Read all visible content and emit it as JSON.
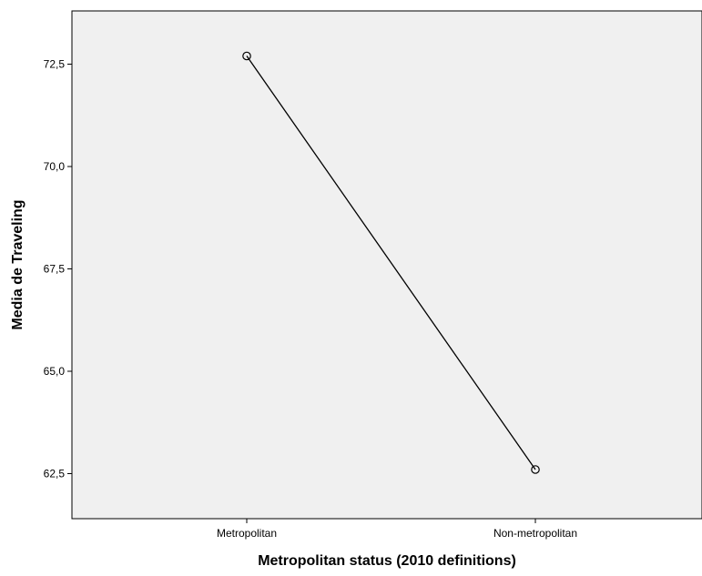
{
  "chart_data": {
    "type": "line",
    "categories": [
      "Metropolitan",
      "Non-metropolitan"
    ],
    "series": [
      {
        "values": [
          72.7,
          62.6
        ],
        "color": "#000000"
      }
    ],
    "xlabel": "Metropolitan status (2010 definitions)",
    "ylabel": "Media de Traveling",
    "yticks": [
      "62,5",
      "65,0",
      "67,5",
      "70,0",
      "72,5"
    ],
    "ylim": [
      61.4,
      73.8
    ],
    "grid": false,
    "markers": "open-circle",
    "background_color": "#f0f0f0"
  }
}
